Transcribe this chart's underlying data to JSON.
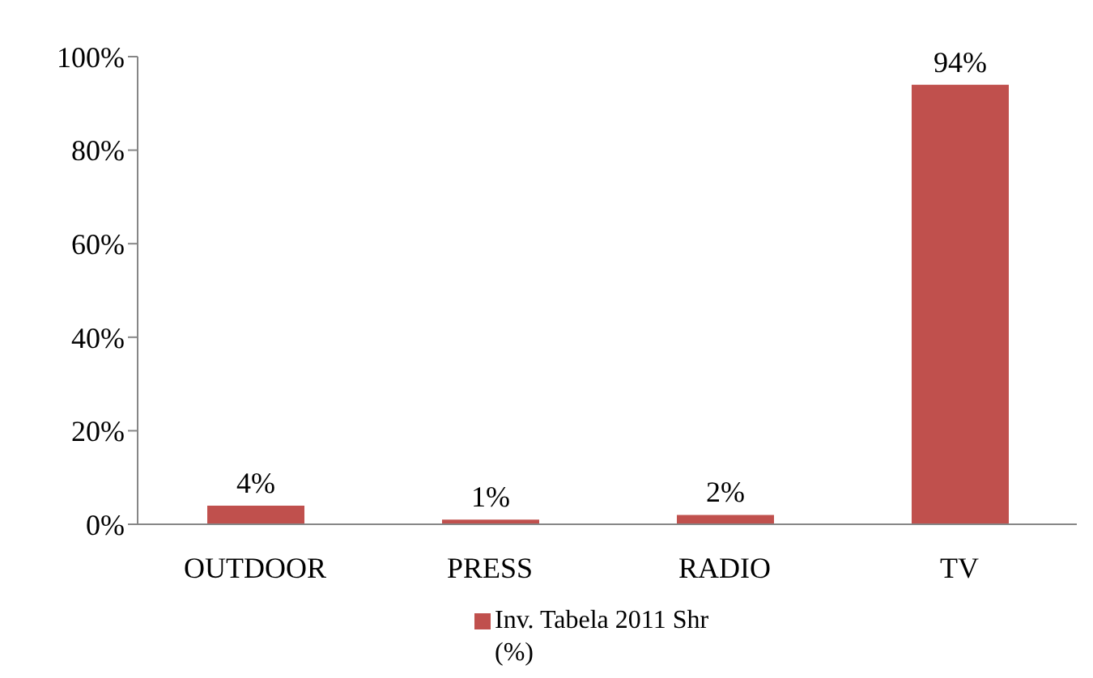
{
  "chart_data": {
    "type": "bar",
    "categories": [
      "OUTDOOR",
      "PRESS",
      "RADIO",
      "TV"
    ],
    "series": [
      {
        "name": "Inv. Tabela 2011 Shr (%)",
        "color": "#c0504d",
        "values": [
          4,
          1,
          2,
          94
        ],
        "value_labels": [
          "4%",
          "1%",
          "2%",
          "94%"
        ]
      }
    ],
    "ylim": [
      0,
      100
    ],
    "yticks": [
      {
        "value": 0,
        "label": "0%"
      },
      {
        "value": 20,
        "label": "20%"
      },
      {
        "value": 40,
        "label": "40%"
      },
      {
        "value": 60,
        "label": "60%"
      },
      {
        "value": 80,
        "label": "80%"
      },
      {
        "value": 100,
        "label": "100%"
      }
    ],
    "grid": false,
    "legend": "bottom"
  }
}
